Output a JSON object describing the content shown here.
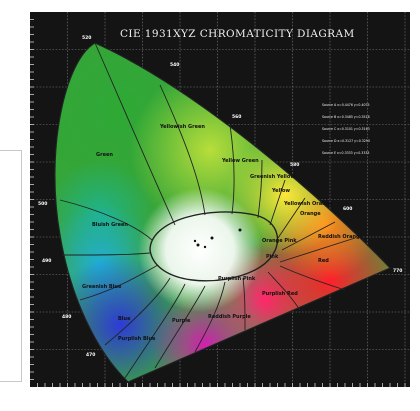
{
  "title": "CIE 1931XYZ CHROMATICITY DIAGRAM",
  "regions": [
    {
      "id": "green",
      "label": "Green"
    },
    {
      "id": "yellowish-green",
      "label": "Yellowish Green"
    },
    {
      "id": "yellow-green",
      "label": "Yellow Green"
    },
    {
      "id": "greenish-yellow",
      "label": "Greenish Yellow"
    },
    {
      "id": "yellow",
      "label": "Yellow"
    },
    {
      "id": "yellowish-orange",
      "label": "Yellowish Orange"
    },
    {
      "id": "orange",
      "label": "Orange"
    },
    {
      "id": "reddish-orange",
      "label": "Reddish Orange"
    },
    {
      "id": "bluish-green",
      "label": "Bluish Green"
    },
    {
      "id": "greenish-blue",
      "label": "Greenish Blue"
    },
    {
      "id": "blue",
      "label": "Blue"
    },
    {
      "id": "purplish-blue",
      "label": "Purplish Blue"
    },
    {
      "id": "purple",
      "label": "Purple"
    },
    {
      "id": "reddish-purple",
      "label": "Reddish Purple"
    },
    {
      "id": "purplish-red",
      "label": "Purplish Red"
    },
    {
      "id": "purplish-pink",
      "label": "Purplish Pink"
    },
    {
      "id": "pink",
      "label": "Pink"
    },
    {
      "id": "red",
      "label": "Red"
    },
    {
      "id": "orange-pink",
      "label": "Orange Pink"
    }
  ],
  "wavelengths": [
    "520",
    "500",
    "490",
    "480",
    "470",
    "380",
    "540",
    "560",
    "580",
    "600",
    "770"
  ],
  "legend": [
    "Source A x=0.4476 y=0.4075",
    "Source B x=0.3485 y=0.3518",
    "Source C x=0.3101 y=0.3163",
    "Source D x=0.3127 y=0.3290",
    "Source E x=0.3333 y=0.3333"
  ],
  "colors": {
    "background": "#141414",
    "grid": "#7a7a7a",
    "title": "#f0f0f0",
    "boundary": "#222222"
  }
}
